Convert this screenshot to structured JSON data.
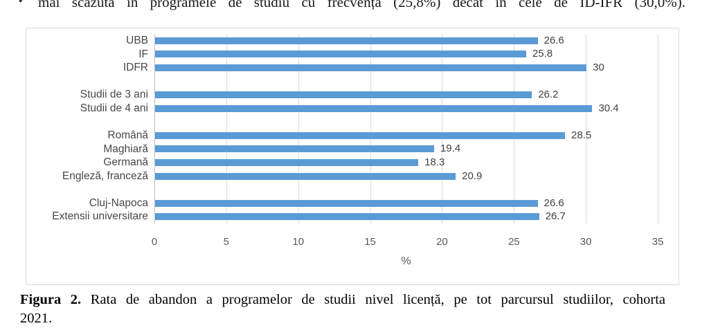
{
  "page": {
    "top_bullet_icon": "✓",
    "top_text_fragment": "mai scăzută în programele de studiu cu frecvența (25,8%) decât în cele de ID-IFR (30,0%).",
    "caption": {
      "prefix": "Figura 2.",
      "line1_rest": " Rata de abandon a programelor de studii nivel licență, pe tot parcursul studiilor, cohorta",
      "line2": "2021."
    }
  },
  "chart_data": {
    "type": "bar",
    "orientation": "horizontal",
    "title": "",
    "xlabel": "%",
    "ylabel": "",
    "xlim": [
      0,
      35
    ],
    "xticks": [
      0,
      5,
      10,
      15,
      20,
      25,
      30,
      35
    ],
    "grid": true,
    "bar_color": "#5b9bd5",
    "groups": [
      {
        "items": [
          {
            "label": "UBB",
            "value": 26.6
          },
          {
            "label": "IF",
            "value": 25.8
          },
          {
            "label": "IDFR",
            "value": 30
          }
        ]
      },
      {
        "items": [
          {
            "label": "Studii de 3 ani",
            "value": 26.2
          },
          {
            "label": "Studii de 4 ani",
            "value": 30.4
          }
        ]
      },
      {
        "items": [
          {
            "label": "Română",
            "value": 28.5
          },
          {
            "label": "Maghiară",
            "value": 19.4
          },
          {
            "label": "Germană",
            "value": 18.3
          },
          {
            "label": "Engleză, franceză",
            "value": 20.9
          }
        ]
      },
      {
        "items": [
          {
            "label": "Cluj-Napoca",
            "value": 26.6
          },
          {
            "label": "Extensii universitare",
            "value": 26.7
          }
        ]
      }
    ]
  }
}
